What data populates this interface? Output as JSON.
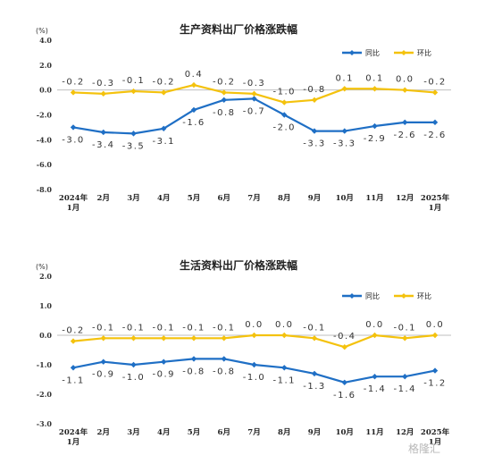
{
  "watermark": "格隆汇",
  "chart_data": [
    {
      "type": "line",
      "title": "生产资料出厂价格涨跌幅",
      "unit": "(%)",
      "ylim": [
        -8.0,
        4.0
      ],
      "yticks": [
        "4.0",
        "2.0",
        "0.0",
        "-2.0",
        "-4.0",
        "-6.0",
        "-8.0"
      ],
      "ytick_values": [
        4,
        2,
        0,
        -2,
        -4,
        -6,
        -8
      ],
      "categories": [
        "2024年 1月",
        "2月",
        "3月",
        "4月",
        "5月",
        "6月",
        "7月",
        "8月",
        "9月",
        "10月",
        "11月",
        "12月",
        "2025年 1月"
      ],
      "legend_placement": "top-right",
      "series": [
        {
          "name": "同比",
          "color": "#1f6fc5",
          "values": [
            -3.0,
            -3.4,
            -3.5,
            -3.1,
            -1.6,
            -0.8,
            -0.7,
            -2.0,
            -3.3,
            -3.3,
            -2.9,
            -2.6,
            -2.6
          ],
          "labels": [
            "-3.0",
            "-3.4",
            "-3.5",
            "-3.1",
            "-1.6",
            "-0.8",
            "-0.7",
            "-2.0",
            "-3.3",
            "-3.3",
            "-2.9",
            "-2.6",
            "-2.6"
          ]
        },
        {
          "name": "环比",
          "color": "#f4c20d",
          "values": [
            -0.2,
            -0.3,
            -0.1,
            -0.2,
            0.4,
            -0.2,
            -0.3,
            -1.0,
            -0.8,
            0.1,
            0.1,
            0.0,
            -0.2
          ],
          "labels": [
            "-0.2",
            "-0.3",
            "-0.1",
            "-0.2",
            "0.4",
            "-0.2",
            "-0.3",
            "-1.0",
            "-0.8",
            "0.1",
            "0.1",
            "0.0",
            "-0.2"
          ]
        }
      ]
    },
    {
      "type": "line",
      "title": "生活资料出厂价格涨跌幅",
      "unit": "(%)",
      "ylim": [
        -3.0,
        2.0
      ],
      "yticks": [
        "2.0",
        "1.0",
        "0.0",
        "-1.0",
        "-2.0",
        "-3.0"
      ],
      "ytick_values": [
        2,
        1,
        0,
        -1,
        -2,
        -3
      ],
      "categories": [
        "2024年 1月",
        "2月",
        "3月",
        "4月",
        "5月",
        "6月",
        "7月",
        "8月",
        "9月",
        "10月",
        "11月",
        "12月",
        "2025年 1月"
      ],
      "legend_placement": "top-right",
      "series": [
        {
          "name": "同比",
          "color": "#1f6fc5",
          "values": [
            -1.1,
            -0.9,
            -1.0,
            -0.9,
            -0.8,
            -0.8,
            -1.0,
            -1.1,
            -1.3,
            -1.6,
            -1.4,
            -1.4,
            -1.2
          ],
          "labels": [
            "-1.1",
            "-0.9",
            "-1.0",
            "-0.9",
            "-0.8",
            "-0.8",
            "-1.0",
            "-1.1",
            "-1.3",
            "-1.6",
            "-1.4",
            "-1.4",
            "-1.2"
          ]
        },
        {
          "name": "环比",
          "color": "#f4c20d",
          "values": [
            -0.2,
            -0.1,
            -0.1,
            -0.1,
            -0.1,
            -0.1,
            0.0,
            0.0,
            -0.1,
            -0.4,
            0.0,
            -0.1,
            0.0
          ],
          "labels": [
            "-0.2",
            "-0.1",
            "-0.1",
            "-0.1",
            "-0.1",
            "-0.1",
            "0.0",
            "0.0",
            "-0.1",
            "-0.4",
            "0.0",
            "-0.1",
            "0.0"
          ]
        }
      ]
    }
  ]
}
